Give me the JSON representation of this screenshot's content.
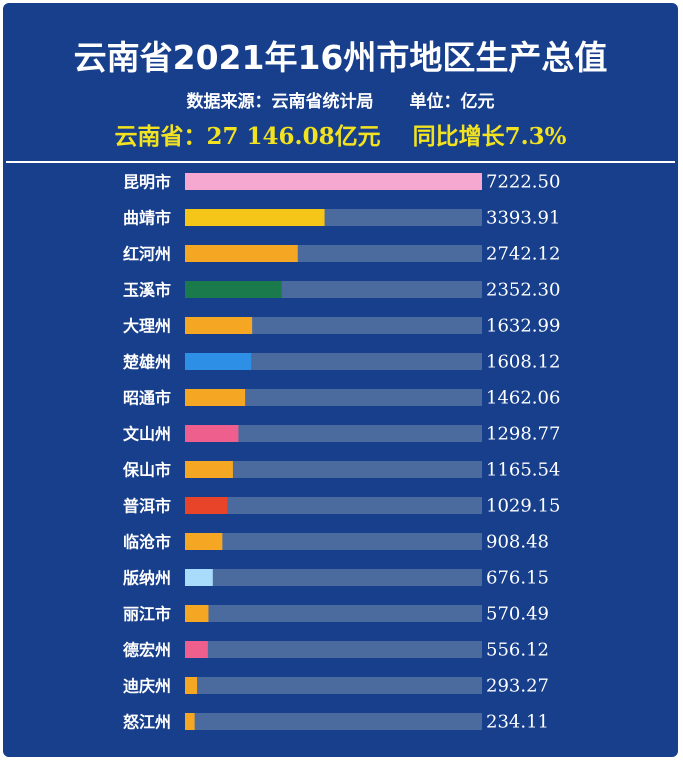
{
  "title": "云南省2021年16州市地区生产总值",
  "source": "数据来源：云南省统计局",
  "unit": "单位：亿元",
  "summary": {
    "total": "云南省：27 146.08亿元",
    "growth": "同比增长7.3%"
  },
  "chart_data": {
    "type": "bar",
    "orientation": "horizontal",
    "title": "云南省2021年16州市地区生产总值",
    "categories": [
      "昆明市",
      "曲靖市",
      "红河州",
      "玉溪市",
      "大理州",
      "楚雄州",
      "昭通市",
      "文山州",
      "保山市",
      "普洱市",
      "临沧市",
      "版纳州",
      "丽江市",
      "德宏州",
      "迪庆州",
      "怒江州"
    ],
    "values": [
      7222.5,
      3393.91,
      2742.12,
      2352.3,
      1632.99,
      1608.12,
      1462.06,
      1298.77,
      1165.54,
      1029.15,
      908.48,
      676.15,
      570.49,
      556.12,
      293.27,
      234.11
    ],
    "value_labels": [
      "7222.50",
      "3393.91",
      "2742.12",
      "2352.30",
      "1632.99",
      "1608.12",
      "1462.06",
      "1298.77",
      "1165.54",
      "1029.15",
      "908.48",
      "676.15",
      "570.49",
      "556.12",
      "293.27",
      "234.11"
    ],
    "colors": [
      "#f7a8d1",
      "#f5c518",
      "#f5a623",
      "#1b7a4c",
      "#f5a623",
      "#2e8fe6",
      "#f5a623",
      "#ef5f8d",
      "#f5a623",
      "#e8442a",
      "#f5a623",
      "#a9dcfb",
      "#f5a623",
      "#ef5f8d",
      "#f5a623",
      "#f5a623"
    ],
    "track_color": "#4b6b9f",
    "xlim": [
      0,
      7222.5
    ],
    "unit": "亿元"
  }
}
